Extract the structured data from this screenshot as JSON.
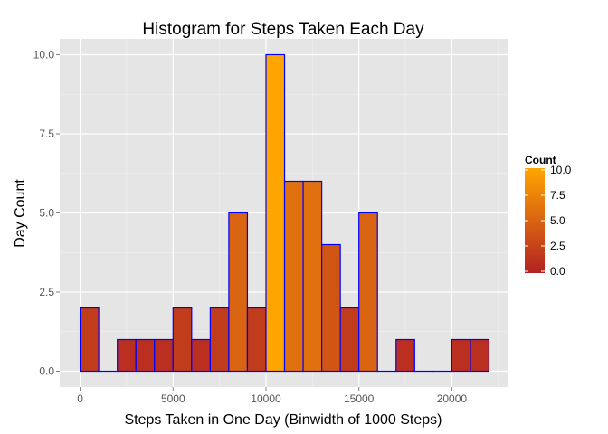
{
  "chart_data": {
    "type": "bar",
    "title": "Histogram for Steps Taken Each Day",
    "xlabel": "Steps Taken in One Day (Binwidth of 1000 Steps)",
    "ylabel": "Day Count",
    "binwidth": 1000,
    "bin_starts": [
      0,
      1000,
      2000,
      3000,
      4000,
      5000,
      6000,
      7000,
      8000,
      9000,
      10000,
      11000,
      12000,
      13000,
      14000,
      15000,
      16000,
      17000,
      18000,
      19000,
      20000,
      21000
    ],
    "values": [
      2,
      0,
      1,
      1,
      1,
      2,
      1,
      2,
      5,
      2,
      10,
      6,
      6,
      4,
      2,
      5,
      0,
      1,
      0,
      0,
      1,
      1
    ],
    "xlim": [
      -1100,
      23000
    ],
    "ylim": [
      -0.5,
      10.5
    ],
    "x_ticks": [
      0,
      5000,
      10000,
      15000,
      20000
    ],
    "x_tick_labels": [
      "0",
      "5000",
      "10000",
      "15000",
      "20000"
    ],
    "y_ticks": [
      0,
      2.5,
      5,
      7.5,
      10
    ],
    "y_tick_labels": [
      "0.0",
      "2.5",
      "5.0",
      "7.5",
      "10.0"
    ],
    "grid": true,
    "legend": {
      "title": "Count",
      "position": "right",
      "ticks": [
        0,
        2.5,
        5,
        7.5,
        10
      ],
      "tick_labels": [
        "0.0",
        "2.5",
        "5.0",
        "7.5",
        "10.0"
      ]
    },
    "colors": {
      "low": "#B22222",
      "high": "#FFA500",
      "bar_outline": "#0000FF",
      "panel_background": "#E5E5E5",
      "grid": "#FFFFFF"
    }
  }
}
